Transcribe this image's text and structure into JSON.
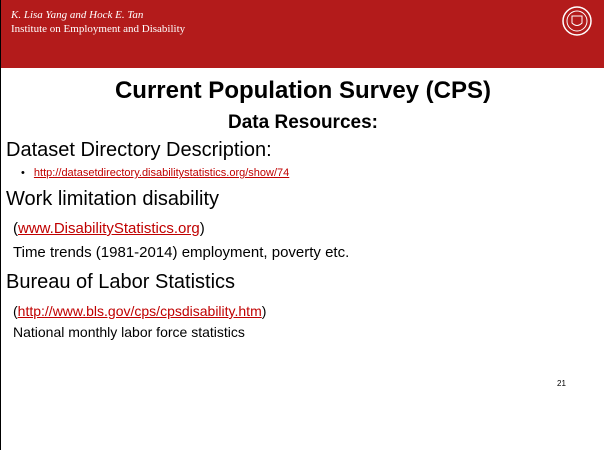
{
  "header": {
    "line1": "K. Lisa Yang and Hock E. Tan",
    "line2": "Institute on Employment and Disability"
  },
  "title": "Current Population Survey (CPS)",
  "subtitle": "Data Resources:",
  "sections": [
    {
      "heading": "Dataset Directory Description:",
      "bullet": "•",
      "link": "http://datasetdirectory.disabilitystatistics.org/show/74 "
    },
    {
      "heading": "Work limitation disability",
      "prefix": "(",
      "link": "www.DisabilityStatistics.org",
      "suffix": ")",
      "note": "Time trends (1981-2014) employment, poverty etc."
    },
    {
      "heading": "Bureau of Labor Statistics",
      "prefix": "(",
      "link": "http://www.bls.gov/cps/cpsdisability.htm",
      "suffix": ")",
      "note": "National monthly labor force statistics"
    }
  ],
  "page_number": "21"
}
